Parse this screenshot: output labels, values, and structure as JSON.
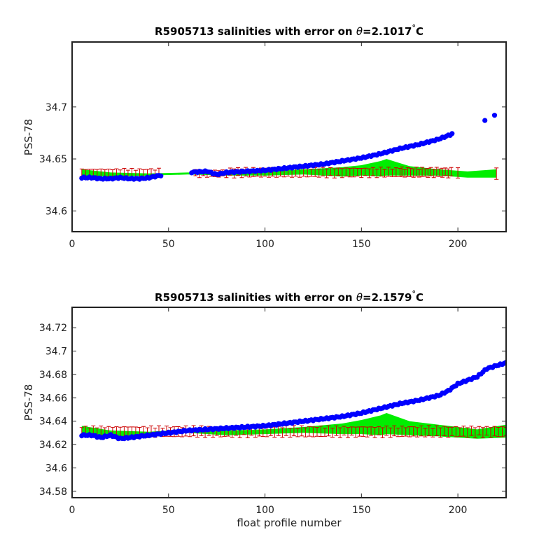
{
  "chart_data": [
    {
      "type": "scatter",
      "title_prefix": "R5905713 salinities with error on ",
      "title_theta": "θ",
      "title_value": "=2.1017",
      "title_degree": "°",
      "title_unit": "C",
      "xlabel": "",
      "ylabel": "PSS-78",
      "xlim": [
        0,
        225
      ],
      "ylim": [
        34.58,
        34.7625
      ],
      "xticks": [
        0,
        50,
        100,
        150,
        200
      ],
      "xtick_labels": [
        "0",
        "50",
        "100",
        "150",
        "200"
      ],
      "yticks": [
        34.6,
        34.65,
        34.7
      ],
      "ytick_labels": [
        "34.6",
        "34.65",
        "34.7"
      ],
      "colors": {
        "float": "#0000ff",
        "error": "#cc0000",
        "band": "#00ee00"
      },
      "band": {
        "x": [
          5,
          20,
          40,
          60,
          80,
          100,
          120,
          140,
          150,
          160,
          163,
          175,
          190,
          205,
          220
        ],
        "lower": [
          34.634,
          34.633,
          34.634,
          34.635,
          34.634,
          34.634,
          34.635,
          34.633,
          34.634,
          34.633,
          34.634,
          34.634,
          34.634,
          34.632,
          34.632
        ],
        "upper": [
          34.64,
          34.637,
          34.636,
          34.637,
          34.637,
          34.638,
          34.64,
          34.642,
          34.644,
          34.648,
          34.65,
          34.643,
          34.64,
          34.638,
          34.64
        ]
      },
      "errorbar_segments": [
        {
          "start": 5,
          "end": 45,
          "step": 2,
          "base": 34.636,
          "half": 0.004
        },
        {
          "start": 64,
          "end": 80,
          "step": 2,
          "base": 34.636,
          "half": 0.003
        },
        {
          "start": 82,
          "end": 170,
          "step": 2,
          "base": 34.637,
          "half": 0.004
        },
        {
          "start": 171,
          "end": 197,
          "step": 1.5,
          "base": 34.637,
          "half": 0.004
        },
        {
          "start": 200,
          "end": 220,
          "step": 20,
          "base": 34.636,
          "half": 0.005
        }
      ],
      "float_profile": {
        "knots_x": [
          5,
          10,
          15,
          20,
          25,
          30,
          35,
          40,
          45,
          60,
          70,
          75,
          80,
          90,
          100,
          110,
          120,
          130,
          140,
          150,
          160,
          170,
          180,
          190,
          197
        ],
        "knots_y": [
          34.632,
          34.632,
          34.631,
          34.631,
          34.632,
          34.631,
          34.631,
          34.632,
          34.634,
          34.637,
          34.638,
          34.635,
          34.637,
          34.638,
          34.639,
          34.641,
          34.643,
          34.645,
          34.648,
          34.651,
          34.655,
          34.66,
          34.664,
          34.669,
          34.674
        ],
        "range": [
          [
            5,
            46
          ],
          [
            62,
            197
          ]
        ],
        "step": 1,
        "extra": [
          {
            "x": 214,
            "y": 34.687
          },
          {
            "x": 219,
            "y": 34.692
          }
        ]
      }
    },
    {
      "type": "scatter",
      "title_prefix": "R5905713 salinities with error on ",
      "title_theta": "θ",
      "title_value": "=2.1579",
      "title_degree": "°",
      "title_unit": "C",
      "xlabel": "float profile number",
      "ylabel": "PSS-78",
      "xlim": [
        0,
        225
      ],
      "ylim": [
        34.5745,
        34.7375
      ],
      "xticks": [
        0,
        50,
        100,
        150,
        200
      ],
      "xtick_labels": [
        "0",
        "50",
        "100",
        "150",
        "200"
      ],
      "yticks": [
        34.58,
        34.6,
        34.62,
        34.64,
        34.66,
        34.68,
        34.7,
        34.72
      ],
      "ytick_labels": [
        "34.58",
        "34.6",
        "34.62",
        "34.64",
        "34.66",
        "34.68",
        "34.7",
        "34.72"
      ],
      "colors": {
        "float": "#0000ff",
        "error": "#cc0000",
        "band": "#00ee00"
      },
      "band": {
        "x": [
          5,
          20,
          40,
          60,
          80,
          100,
          120,
          140,
          150,
          160,
          163,
          175,
          190,
          200,
          210,
          225
        ],
        "lower": [
          34.628,
          34.626,
          34.628,
          34.63,
          34.628,
          34.629,
          34.63,
          34.629,
          34.629,
          34.628,
          34.629,
          34.628,
          34.627,
          34.626,
          34.625,
          34.626
        ],
        "upper": [
          34.636,
          34.632,
          34.631,
          34.633,
          34.632,
          34.633,
          34.635,
          34.638,
          34.641,
          34.645,
          34.647,
          34.64,
          34.637,
          34.635,
          34.633,
          34.637
        ]
      },
      "errorbar_segments": [
        {
          "start": 5,
          "end": 225,
          "step": 2,
          "base": 34.631,
          "half": 0.004
        }
      ],
      "float_profile": {
        "knots_x": [
          5,
          10,
          15,
          20,
          25,
          30,
          40,
          50,
          60,
          70,
          80,
          90,
          100,
          110,
          120,
          130,
          140,
          150,
          160,
          170,
          180,
          190,
          195,
          200,
          210,
          215,
          225
        ],
        "knots_y": [
          34.628,
          34.628,
          34.626,
          34.628,
          34.625,
          34.626,
          34.628,
          34.63,
          34.632,
          34.633,
          34.634,
          34.635,
          34.636,
          34.638,
          34.64,
          34.642,
          34.644,
          34.647,
          34.651,
          34.655,
          34.658,
          34.662,
          34.666,
          34.672,
          34.678,
          34.685,
          34.69
        ],
        "range": [
          [
            5,
            225
          ]
        ],
        "step": 1,
        "extra": []
      }
    }
  ]
}
